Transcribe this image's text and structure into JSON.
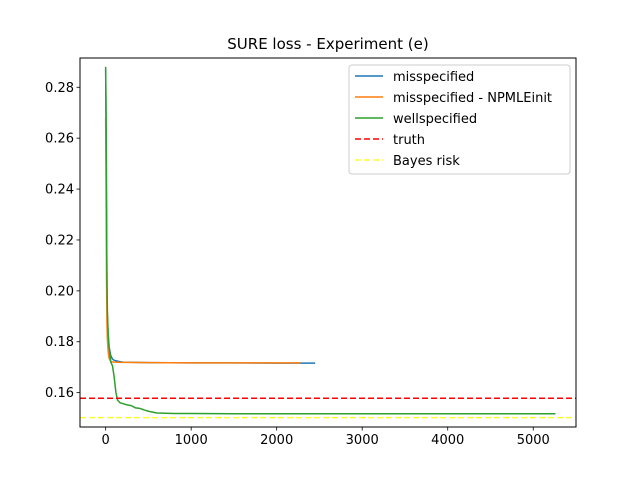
{
  "chart_data": {
    "type": "line",
    "title": "SURE loss - Experiment (e)",
    "xlabel": "",
    "ylabel": "",
    "xlim": [
      -300,
      5500
    ],
    "ylim": [
      0.1465,
      0.2915
    ],
    "xticks": [
      0,
      1000,
      2000,
      3000,
      4000,
      5000
    ],
    "xtick_labels": [
      "0",
      "1000",
      "2000",
      "3000",
      "4000",
      "5000"
    ],
    "yticks": [
      0.16,
      0.18,
      0.2,
      0.22,
      0.24,
      0.26,
      0.28
    ],
    "ytick_labels": [
      "0.16",
      "0.18",
      "0.20",
      "0.22",
      "0.24",
      "0.26",
      "0.28"
    ],
    "grid": false,
    "legend_position": "upper-right",
    "series": [
      {
        "name": "misspecified",
        "color": "#1f77b4",
        "style": "solid",
        "x": [
          0,
          5,
          10,
          15,
          20,
          30,
          40,
          60,
          80,
          100,
          150,
          200,
          500,
          1000,
          1500,
          2000,
          2450
        ],
        "y": [
          0.287,
          0.262,
          0.23,
          0.2,
          0.19,
          0.182,
          0.178,
          0.1745,
          0.1732,
          0.1727,
          0.1723,
          0.172,
          0.1718,
          0.1717,
          0.1717,
          0.1716,
          0.1716
        ]
      },
      {
        "name": "misspecified - NPMLEinit",
        "color": "#ff7f0e",
        "style": "solid",
        "x": [
          0,
          5,
          10,
          15,
          20,
          30,
          40,
          60,
          100,
          200,
          500,
          1000,
          1500,
          2000,
          2280
        ],
        "y": [
          0.268,
          0.24,
          0.205,
          0.188,
          0.181,
          0.176,
          0.1735,
          0.1722,
          0.172,
          0.1719,
          0.1718,
          0.1717,
          0.1717,
          0.1717,
          0.1717
        ]
      },
      {
        "name": "wellspecified",
        "color": "#2ca02c",
        "style": "solid",
        "x": [
          0,
          5,
          10,
          15,
          20,
          30,
          40,
          50,
          60,
          80,
          100,
          120,
          140,
          170,
          200,
          250,
          300,
          350,
          400,
          450,
          500,
          600,
          700,
          800,
          1000,
          1500,
          2000,
          3000,
          4000,
          5000,
          5260
        ],
        "y": [
          0.288,
          0.27,
          0.235,
          0.205,
          0.192,
          0.183,
          0.178,
          0.175,
          0.172,
          0.1705,
          0.166,
          0.16,
          0.157,
          0.156,
          0.1557,
          0.1552,
          0.1549,
          0.154,
          0.1538,
          0.1532,
          0.1527,
          0.152,
          0.1519,
          0.1518,
          0.1518,
          0.1517,
          0.1517,
          0.1517,
          0.1517,
          0.1517,
          0.1517
        ]
      },
      {
        "name": "truth",
        "color": "#ff0000",
        "style": "dashed",
        "hline": 0.1578
      },
      {
        "name": "Bayes risk",
        "color": "#ffff33",
        "style": "dashed",
        "hline": 0.1502
      }
    ]
  }
}
